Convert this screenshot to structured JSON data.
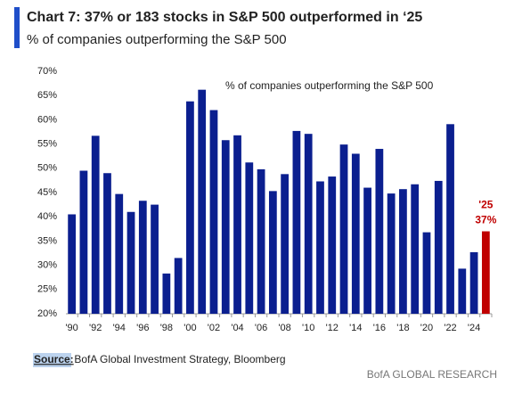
{
  "chart_data": {
    "type": "bar",
    "title": "Chart 7: 37% or 183 stocks in S&P 500 outperformed in ‘25",
    "subtitle": "% of companies outperforming the S&P 500",
    "categories": [
      "'90",
      null,
      "'92",
      null,
      "'94",
      null,
      "'96",
      null,
      "'98",
      null,
      "'00",
      null,
      "'02",
      null,
      "'04",
      null,
      "'06",
      null,
      "'08",
      null,
      "'10",
      null,
      "'12",
      null,
      "'14",
      null,
      "'16",
      null,
      "'18",
      null,
      "'20",
      null,
      "'22",
      null,
      "'24",
      "'25"
    ],
    "series": [
      {
        "name": "% of companies outperforming the S&P 500",
        "values": [
          40.5,
          49.5,
          56.7,
          49,
          44.7,
          41,
          43.3,
          42.5,
          28.3,
          31.5,
          63.8,
          66.2,
          62,
          55.8,
          56.8,
          51.2,
          49.8,
          45.3,
          48.8,
          57.7,
          57.1,
          47.3,
          48.3,
          54.9,
          53,
          46,
          54,
          44.8,
          45.7,
          46.7,
          36.8,
          47.4,
          59.1,
          29.3,
          32.7,
          37
        ],
        "value_labels": [
          null,
          null,
          null,
          null,
          null,
          null,
          null,
          null,
          null,
          null,
          null,
          null,
          null,
          null,
          null,
          null,
          null,
          null,
          null,
          null,
          null,
          null,
          null,
          null,
          null,
          null,
          null,
          null,
          null,
          null,
          null,
          null,
          null,
          null,
          null,
          "37%"
        ],
        "colors": [
          "#0b1f8f",
          "#0b1f8f",
          "#0b1f8f",
          "#0b1f8f",
          "#0b1f8f",
          "#0b1f8f",
          "#0b1f8f",
          "#0b1f8f",
          "#0b1f8f",
          "#0b1f8f",
          "#0b1f8f",
          "#0b1f8f",
          "#0b1f8f",
          "#0b1f8f",
          "#0b1f8f",
          "#0b1f8f",
          "#0b1f8f",
          "#0b1f8f",
          "#0b1f8f",
          "#0b1f8f",
          "#0b1f8f",
          "#0b1f8f",
          "#0b1f8f",
          "#0b1f8f",
          "#0b1f8f",
          "#0b1f8f",
          "#0b1f8f",
          "#0b1f8f",
          "#0b1f8f",
          "#0b1f8f",
          "#0b1f8f",
          "#0b1f8f",
          "#0b1f8f",
          "#0b1f8f",
          "#0b1f8f",
          "#c00000"
        ]
      }
    ],
    "ylim": [
      20,
      70
    ],
    "yticks": [
      {
        "value": 20,
        "label": "20%"
      },
      {
        "value": 25,
        "label": "25%"
      },
      {
        "value": 30,
        "label": "30%"
      },
      {
        "value": 35,
        "label": "35%"
      },
      {
        "value": 40,
        "label": "40%"
      },
      {
        "value": 45,
        "label": "45%"
      },
      {
        "value": 50,
        "label": "50%"
      },
      {
        "value": 55,
        "label": "55%"
      },
      {
        "value": 60,
        "label": "60%"
      },
      {
        "value": 65,
        "label": "65%"
      },
      {
        "value": 70,
        "label": "70%"
      }
    ],
    "grid": false,
    "source_label": "Source:",
    "source": " BofA Global Investment Strategy, Bloomberg",
    "footer": "BofA GLOBAL RESEARCH"
  }
}
